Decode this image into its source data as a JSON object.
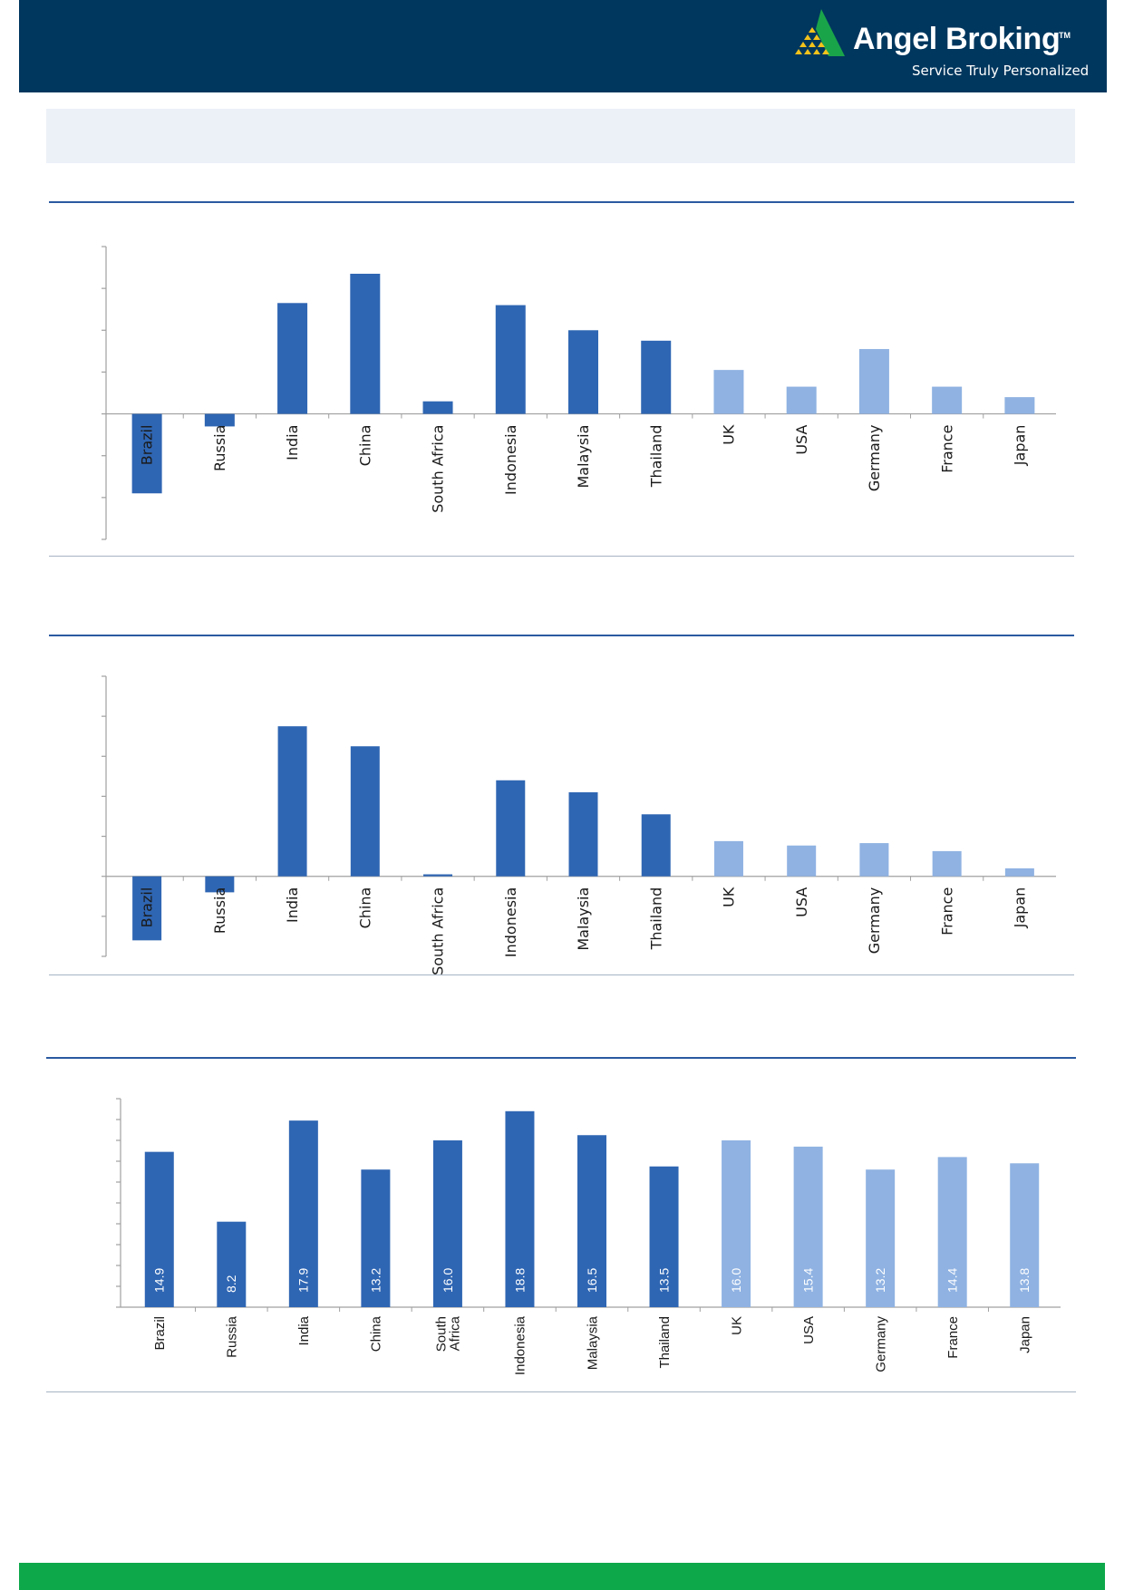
{
  "header": {
    "brand": "Angel Broking",
    "trademark": "TM",
    "tagline": "Service Truly Personalized",
    "logo_icon": "pyramid-logo-icon"
  },
  "colors": {
    "header_bg": "#00375e",
    "title_band_bg": "#ecf1f8",
    "emerging_bar": "#2f66b3",
    "developed_bar": "#8fb2e2",
    "axis": "#a0a0a0",
    "footer": "#0da84a",
    "logo_green": "#1aa44a",
    "logo_yellow": "#f3c21b"
  },
  "chart_data": [
    {
      "type": "bar",
      "categories": [
        "Brazil",
        "Russia",
        "India",
        "China",
        "South Africa",
        "Indonesia",
        "Malaysia",
        "Thailand",
        "UK",
        "USA",
        "Germany",
        "France",
        "Japan"
      ],
      "values": [
        -19,
        -3,
        26.5,
        33.5,
        3,
        26,
        20,
        17.5,
        10.5,
        6.5,
        15.5,
        6.5,
        4
      ],
      "groups": [
        "emerging",
        "emerging",
        "emerging",
        "emerging",
        "emerging",
        "emerging",
        "emerging",
        "emerging",
        "developed",
        "developed",
        "developed",
        "developed",
        "developed"
      ],
      "ylim": [
        -30,
        40
      ],
      "grid": false
    },
    {
      "type": "bar",
      "categories": [
        "Brazil",
        "Russia",
        "India",
        "China",
        "South Africa",
        "Indonesia",
        "Malaysia",
        "Thailand",
        "UK",
        "USA",
        "Germany",
        "France",
        "Japan"
      ],
      "values": [
        -16,
        -4,
        37.5,
        32.5,
        0.5,
        24,
        21,
        15.5,
        8.8,
        7.7,
        8.3,
        6.3,
        2
      ],
      "groups": [
        "emerging",
        "emerging",
        "emerging",
        "emerging",
        "emerging",
        "emerging",
        "emerging",
        "emerging",
        "developed",
        "developed",
        "developed",
        "developed",
        "developed"
      ],
      "ylim": [
        -20,
        50
      ],
      "grid": false
    },
    {
      "type": "bar",
      "categories": [
        "Brazil",
        "Russia",
        "India",
        "China",
        "South Africa",
        "Indonesia",
        "Malaysia",
        "Thailand",
        "UK",
        "USA",
        "Germany",
        "France",
        "Japan"
      ],
      "values": [
        14.9,
        8.2,
        17.9,
        13.2,
        16.0,
        18.8,
        16.5,
        13.5,
        16.0,
        15.4,
        13.2,
        14.4,
        13.8
      ],
      "data_labels": [
        "14.9",
        "8.2",
        "17.9",
        "13.2",
        "16.0",
        "18.8",
        "16.5",
        "13.5",
        "16.0",
        "15.4",
        "13.2",
        "14.4",
        "13.8"
      ],
      "groups": [
        "emerging",
        "emerging",
        "emerging",
        "emerging",
        "emerging",
        "emerging",
        "emerging",
        "emerging",
        "developed",
        "developed",
        "developed",
        "developed",
        "developed"
      ],
      "ylim": [
        0,
        20
      ],
      "grid": false
    }
  ]
}
